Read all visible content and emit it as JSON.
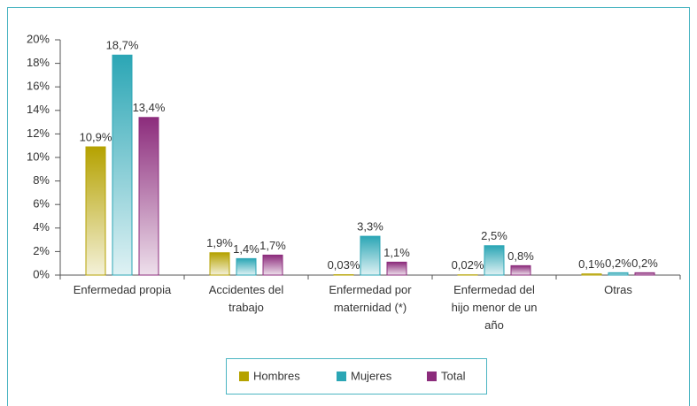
{
  "chart_data": {
    "type": "bar",
    "categories": [
      "Enfermedad propia",
      "Accidentes del trabajo",
      "Enfermedad por maternidad (*)",
      "Enfermedad del hijo menor de un año",
      "Otras"
    ],
    "series": [
      {
        "name": "Hombres",
        "color": "#b5a200",
        "values": [
          10.9,
          1.9,
          0.03,
          0.02,
          0.1
        ],
        "value_labels": [
          "10,9%",
          "1,9%",
          "0,03%",
          "0,02%",
          "0,1%"
        ]
      },
      {
        "name": "Mujeres",
        "color": "#2ba6b5",
        "values": [
          18.7,
          1.4,
          3.3,
          2.5,
          0.2
        ],
        "value_labels": [
          "18,7%",
          "1,4%",
          "3,3%",
          "2,5%",
          "0,2%"
        ]
      },
      {
        "name": "Total",
        "color": "#8c2c7c",
        "values": [
          13.4,
          1.7,
          1.1,
          0.8,
          0.2
        ],
        "value_labels": [
          "13,4%",
          "1,7%",
          "1,1%",
          "0,8%",
          "0,2%"
        ]
      }
    ],
    "ylim": [
      0,
      20
    ],
    "yticks": [
      {
        "value": 0,
        "label": "0%"
      },
      {
        "value": 2,
        "label": "2%"
      },
      {
        "value": 4,
        "label": "4%"
      },
      {
        "value": 6,
        "label": "6%"
      },
      {
        "value": 8,
        "label": "8%"
      },
      {
        "value": 10,
        "label": "10%"
      },
      {
        "value": 12,
        "label": "12%"
      },
      {
        "value": 14,
        "label": "14%"
      },
      {
        "value": 16,
        "label": "16%"
      },
      {
        "value": 18,
        "label": "18%"
      },
      {
        "value": 20,
        "label": "20%"
      }
    ],
    "legend": "bottom"
  }
}
